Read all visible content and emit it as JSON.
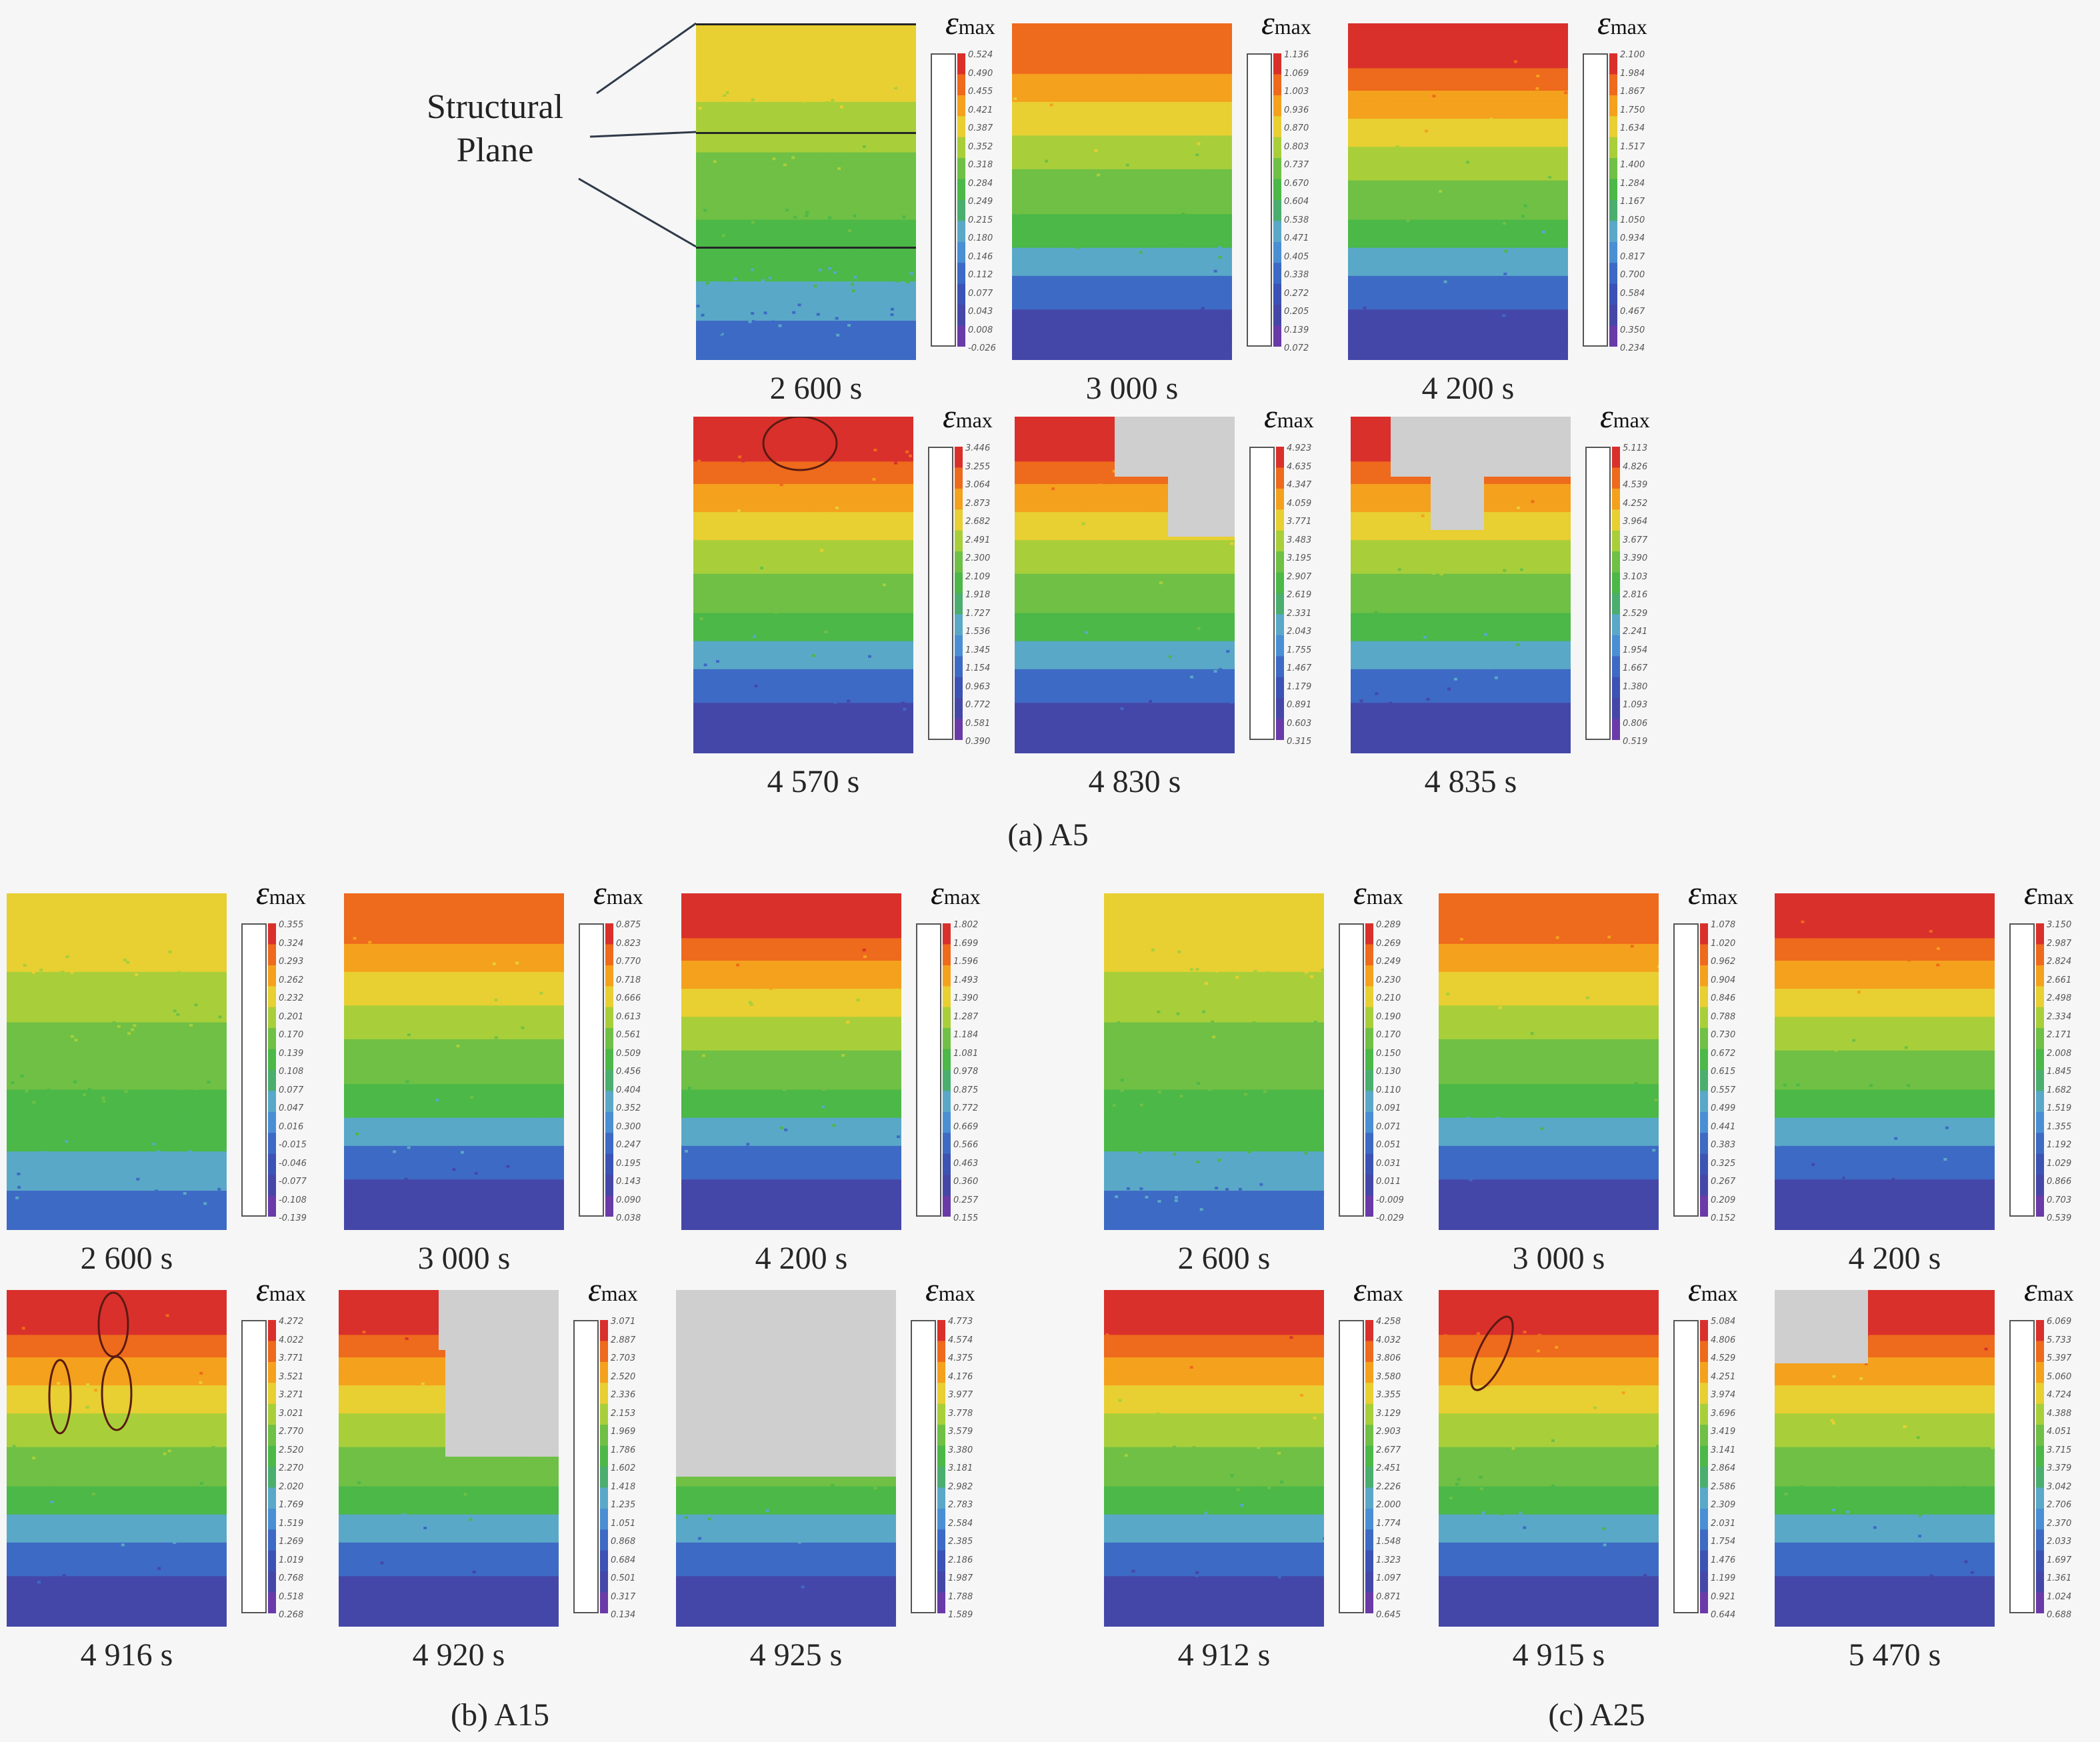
{
  "structural_plane_label": [
    "Structural",
    "Plane"
  ],
  "colorbar_title": {
    "symbol": "ε",
    "subscript": "max"
  },
  "groups": [
    {
      "id": "a",
      "caption": "(a) A5"
    },
    {
      "id": "b",
      "caption": "(b) A15"
    },
    {
      "id": "c",
      "caption": "(c) A25"
    }
  ],
  "panels": [
    {
      "group": "a",
      "time": "2 600 s",
      "ticks": [
        "0.524",
        "0.490",
        "0.455",
        "0.421",
        "0.387",
        "0.352",
        "0.318",
        "0.284",
        "0.249",
        "0.215",
        "0.180",
        "0.146",
        "0.112",
        "0.077",
        "0.043",
        "0.008",
        "-0.026"
      ]
    },
    {
      "group": "a",
      "time": "3 000 s",
      "ticks": [
        "1.136",
        "1.069",
        "1.003",
        "0.936",
        "0.870",
        "0.803",
        "0.737",
        "0.670",
        "0.604",
        "0.538",
        "0.471",
        "0.405",
        "0.338",
        "0.272",
        "0.205",
        "0.139",
        "0.072"
      ]
    },
    {
      "group": "a",
      "time": "4 200 s",
      "ticks": [
        "2.100",
        "1.984",
        "1.867",
        "1.750",
        "1.634",
        "1.517",
        "1.400",
        "1.284",
        "1.167",
        "1.050",
        "0.934",
        "0.817",
        "0.700",
        "0.584",
        "0.467",
        "0.350",
        "0.234"
      ]
    },
    {
      "group": "a",
      "time": "4 570 s",
      "ticks": [
        "3.446",
        "3.255",
        "3.064",
        "2.873",
        "2.682",
        "2.491",
        "2.300",
        "2.109",
        "1.918",
        "1.727",
        "1.536",
        "1.345",
        "1.154",
        "0.963",
        "0.772",
        "0.581",
        "0.390"
      ]
    },
    {
      "group": "a",
      "time": "4 830 s",
      "ticks": [
        "4.923",
        "4.635",
        "4.347",
        "4.059",
        "3.771",
        "3.483",
        "3.195",
        "2.907",
        "2.619",
        "2.331",
        "2.043",
        "1.755",
        "1.467",
        "1.179",
        "0.891",
        "0.603",
        "0.315"
      ]
    },
    {
      "group": "a",
      "time": "4 835 s",
      "ticks": [
        "5.113",
        "4.826",
        "4.539",
        "4.252",
        "3.964",
        "3.677",
        "3.390",
        "3.103",
        "2.816",
        "2.529",
        "2.241",
        "1.954",
        "1.667",
        "1.380",
        "1.093",
        "0.806",
        "0.519"
      ]
    },
    {
      "group": "b",
      "time": "2 600 s",
      "ticks": [
        "0.355",
        "0.324",
        "0.293",
        "0.262",
        "0.232",
        "0.201",
        "0.170",
        "0.139",
        "0.108",
        "0.077",
        "0.047",
        "0.016",
        "-0.015",
        "-0.046",
        "-0.077",
        "-0.108",
        "-0.139"
      ]
    },
    {
      "group": "b",
      "time": "3 000 s",
      "ticks": [
        "0.875",
        "0.823",
        "0.770",
        "0.718",
        "0.666",
        "0.613",
        "0.561",
        "0.509",
        "0.456",
        "0.404",
        "0.352",
        "0.300",
        "0.247",
        "0.195",
        "0.143",
        "0.090",
        "0.038"
      ]
    },
    {
      "group": "b",
      "time": "4 200 s",
      "ticks": [
        "1.802",
        "1.699",
        "1.596",
        "1.493",
        "1.390",
        "1.287",
        "1.184",
        "1.081",
        "0.978",
        "0.875",
        "0.772",
        "0.669",
        "0.566",
        "0.463",
        "0.360",
        "0.257",
        "0.155"
      ]
    },
    {
      "group": "b",
      "time": "4 916 s",
      "ticks": [
        "4.272",
        "4.022",
        "3.771",
        "3.521",
        "3.271",
        "3.021",
        "2.770",
        "2.520",
        "2.270",
        "2.020",
        "1.769",
        "1.519",
        "1.269",
        "1.019",
        "0.768",
        "0.518",
        "0.268"
      ]
    },
    {
      "group": "b",
      "time": "4 920 s",
      "ticks": [
        "3.071",
        "2.887",
        "2.703",
        "2.520",
        "2.336",
        "2.153",
        "1.969",
        "1.786",
        "1.602",
        "1.418",
        "1.235",
        "1.051",
        "0.868",
        "0.684",
        "0.501",
        "0.317",
        "0.134"
      ]
    },
    {
      "group": "b",
      "time": "4 925 s",
      "ticks": [
        "4.773",
        "4.574",
        "4.375",
        "4.176",
        "3.977",
        "3.778",
        "3.579",
        "3.380",
        "3.181",
        "2.982",
        "2.783",
        "2.584",
        "2.385",
        "2.186",
        "1.987",
        "1.788",
        "1.589"
      ]
    },
    {
      "group": "c",
      "time": "2 600 s",
      "ticks": [
        "0.289",
        "0.269",
        "0.249",
        "0.230",
        "0.210",
        "0.190",
        "0.170",
        "0.150",
        "0.130",
        "0.110",
        "0.091",
        "0.071",
        "0.051",
        "0.031",
        "0.011",
        "-0.009",
        "-0.029"
      ]
    },
    {
      "group": "c",
      "time": "3 000 s",
      "ticks": [
        "1.078",
        "1.020",
        "0.962",
        "0.904",
        "0.846",
        "0.788",
        "0.730",
        "0.672",
        "0.615",
        "0.557",
        "0.499",
        "0.441",
        "0.383",
        "0.325",
        "0.267",
        "0.209",
        "0.152"
      ]
    },
    {
      "group": "c",
      "time": "4 200 s",
      "ticks": [
        "3.150",
        "2.987",
        "2.824",
        "2.661",
        "2.498",
        "2.334",
        "2.171",
        "2.008",
        "1.845",
        "1.682",
        "1.519",
        "1.355",
        "1.192",
        "1.029",
        "0.866",
        "0.703",
        "0.539"
      ]
    },
    {
      "group": "c",
      "time": "4 912 s",
      "ticks": [
        "4.258",
        "4.032",
        "3.806",
        "3.580",
        "3.355",
        "3.129",
        "2.903",
        "2.677",
        "2.451",
        "2.226",
        "2.000",
        "1.774",
        "1.548",
        "1.323",
        "1.097",
        "0.871",
        "0.645"
      ]
    },
    {
      "group": "c",
      "time": "4 915 s",
      "ticks": [
        "5.084",
        "4.806",
        "4.529",
        "4.251",
        "3.974",
        "3.696",
        "3.419",
        "3.141",
        "2.864",
        "2.586",
        "2.309",
        "2.031",
        "1.754",
        "1.476",
        "1.199",
        "0.921",
        "0.644"
      ]
    },
    {
      "group": "c",
      "time": "5 470 s",
      "ticks": [
        "6.069",
        "5.733",
        "5.397",
        "5.060",
        "4.724",
        "4.388",
        "4.051",
        "3.715",
        "3.379",
        "3.042",
        "2.706",
        "2.370",
        "2.033",
        "1.697",
        "1.361",
        "1.024",
        "0.688"
      ]
    }
  ],
  "colors": {
    "scale": [
      "#d9302c",
      "#ee6a1c",
      "#f4a11d",
      "#e8cf32",
      "#a8cf3a",
      "#6fc045",
      "#4bb848",
      "#4aae6e",
      "#5aa8c8",
      "#4a8fd4",
      "#3d6ac4",
      "#3c52b4",
      "#4547a8",
      "#6a3aa8"
    ],
    "background": "#f6f6f6",
    "failed_region": "#cfcfcf",
    "annotation": "#5a1a12"
  }
}
